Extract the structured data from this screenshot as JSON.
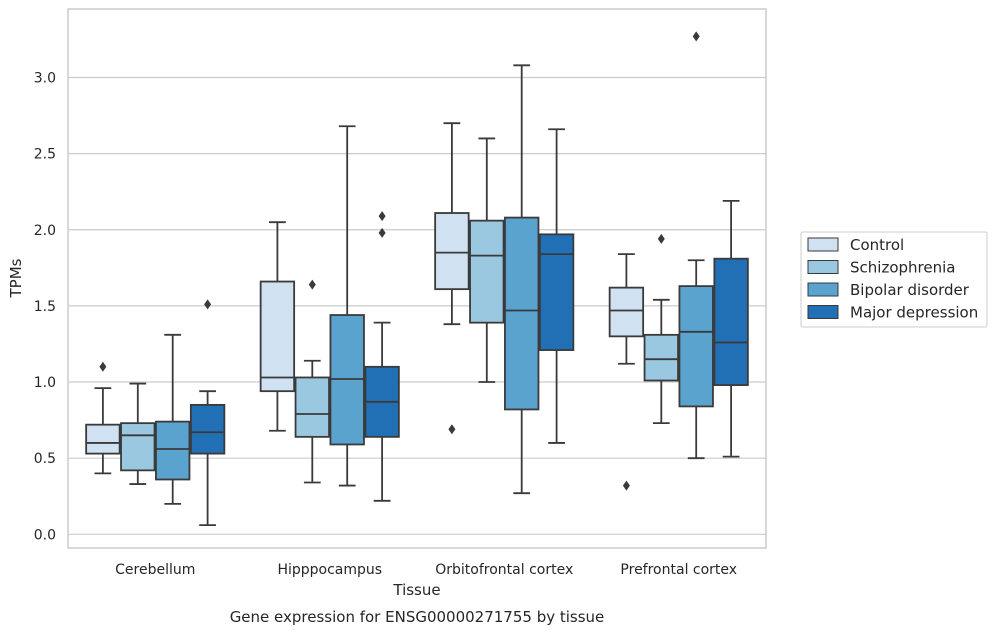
{
  "chart_data": {
    "type": "boxplot",
    "xlabel": "Tissue",
    "ylabel": "TPMs",
    "caption": "Gene expression for ENSG00000271755 by tissue",
    "categories": [
      "Cerebellum",
      "Hipppocampus",
      "Orbitofrontal cortex",
      "Prefrontal cortex"
    ],
    "ylim": [
      -0.09,
      3.45
    ],
    "yticks": [
      "0.0",
      "0.5",
      "1.0",
      "1.5",
      "2.0",
      "2.5",
      "3.0"
    ],
    "grid": "horizontal",
    "legend_position": "right",
    "series": [
      {
        "name": "Control",
        "color": "#d0e1f2",
        "boxes": [
          {
            "category": "Cerebellum",
            "whisker_low": 0.4,
            "q1": 0.53,
            "median": 0.6,
            "q3": 0.72,
            "whisker_high": 0.96,
            "outliers": [
              1.1
            ]
          },
          {
            "category": "Hipppocampus",
            "whisker_low": 0.68,
            "q1": 0.94,
            "median": 1.03,
            "q3": 1.66,
            "whisker_high": 2.05,
            "outliers": []
          },
          {
            "category": "Orbitofrontal cortex",
            "whisker_low": 1.38,
            "q1": 1.61,
            "median": 1.85,
            "q3": 2.11,
            "whisker_high": 2.7,
            "outliers": [
              0.69
            ]
          },
          {
            "category": "Prefrontal cortex",
            "whisker_low": 1.12,
            "q1": 1.3,
            "median": 1.47,
            "q3": 1.62,
            "whisker_high": 1.84,
            "outliers": [
              0.32
            ]
          }
        ]
      },
      {
        "name": "Schizophrenia",
        "color": "#9ac8e0",
        "boxes": [
          {
            "category": "Cerebellum",
            "whisker_low": 0.33,
            "q1": 0.42,
            "median": 0.65,
            "q3": 0.73,
            "whisker_high": 0.99,
            "outliers": []
          },
          {
            "category": "Hipppocampus",
            "whisker_low": 0.34,
            "q1": 0.64,
            "median": 0.79,
            "q3": 1.03,
            "whisker_high": 1.14,
            "outliers": [
              1.64
            ]
          },
          {
            "category": "Orbitofrontal cortex",
            "whisker_low": 1.0,
            "q1": 1.39,
            "median": 1.83,
            "q3": 2.06,
            "whisker_high": 2.6,
            "outliers": []
          },
          {
            "category": "Prefrontal cortex",
            "whisker_low": 0.73,
            "q1": 1.01,
            "median": 1.15,
            "q3": 1.31,
            "whisker_high": 1.54,
            "outliers": [
              1.94
            ]
          }
        ]
      },
      {
        "name": "Bipolar disorder",
        "color": "#5ba3cf",
        "boxes": [
          {
            "category": "Cerebellum",
            "whisker_low": 0.2,
            "q1": 0.36,
            "median": 0.56,
            "q3": 0.74,
            "whisker_high": 1.31,
            "outliers": []
          },
          {
            "category": "Hipppocampus",
            "whisker_low": 0.32,
            "q1": 0.59,
            "median": 1.02,
            "q3": 1.44,
            "whisker_high": 2.68,
            "outliers": []
          },
          {
            "category": "Orbitofrontal cortex",
            "whisker_low": 0.27,
            "q1": 0.82,
            "median": 1.47,
            "q3": 2.08,
            "whisker_high": 3.08,
            "outliers": []
          },
          {
            "category": "Prefrontal cortex",
            "whisker_low": 0.5,
            "q1": 0.84,
            "median": 1.33,
            "q3": 1.63,
            "whisker_high": 1.8,
            "outliers": [
              3.27
            ]
          }
        ]
      },
      {
        "name": "Major depression",
        "color": "#2170b5",
        "boxes": [
          {
            "category": "Cerebellum",
            "whisker_low": 0.06,
            "q1": 0.53,
            "median": 0.67,
            "q3": 0.85,
            "whisker_high": 0.94,
            "outliers": [
              1.51
            ]
          },
          {
            "category": "Hipppocampus",
            "whisker_low": 0.22,
            "q1": 0.64,
            "median": 0.87,
            "q3": 1.1,
            "whisker_high": 1.39,
            "outliers": [
              1.98,
              2.09
            ]
          },
          {
            "category": "Orbitofrontal cortex",
            "whisker_low": 0.6,
            "q1": 1.21,
            "median": 1.84,
            "q3": 1.97,
            "whisker_high": 2.66,
            "outliers": []
          },
          {
            "category": "Prefrontal cortex",
            "whisker_low": 0.51,
            "q1": 0.98,
            "median": 1.26,
            "q3": 1.81,
            "whisker_high": 2.19,
            "outliers": []
          }
        ]
      }
    ]
  },
  "colors": {
    "frame": "#cccccc",
    "grid": "#cccccc",
    "box_edge": "#3a3a3a",
    "text": "#262626"
  }
}
